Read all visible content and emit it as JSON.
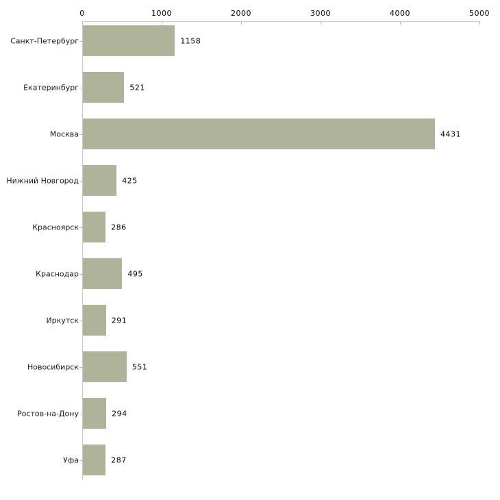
{
  "chart_data": {
    "type": "bar",
    "orientation": "horizontal",
    "title": "",
    "xlabel": "",
    "ylabel": "",
    "categories": [
      "Санкт-Петербург",
      "Екатеринбург",
      "Москва",
      "Нижний Новгород",
      "Красноярск",
      "Краснодар",
      "Иркутск",
      "Новосибирск",
      "Ростов-на-Дону",
      "Уфа"
    ],
    "values": [
      1158,
      521,
      4431,
      425,
      286,
      495,
      291,
      551,
      294,
      287
    ],
    "value_labels": [
      "1158",
      "521",
      "4431",
      "425",
      "286",
      "495",
      "291",
      "551",
      "294",
      "287"
    ],
    "xlim": [
      0,
      5000
    ],
    "x_ticks": [
      0,
      1000,
      2000,
      3000,
      4000,
      5000
    ],
    "x_tick_labels": [
      "0",
      "1000",
      "2000",
      "3000",
      "4000",
      "5000"
    ],
    "grid": false,
    "legend": null,
    "axis_position": "top",
    "colors": {
      "bar_fill": "#aeb399",
      "axis_line": "#c9c9c9",
      "tick_mark": "#bcc0a2",
      "text": "#000000"
    }
  }
}
